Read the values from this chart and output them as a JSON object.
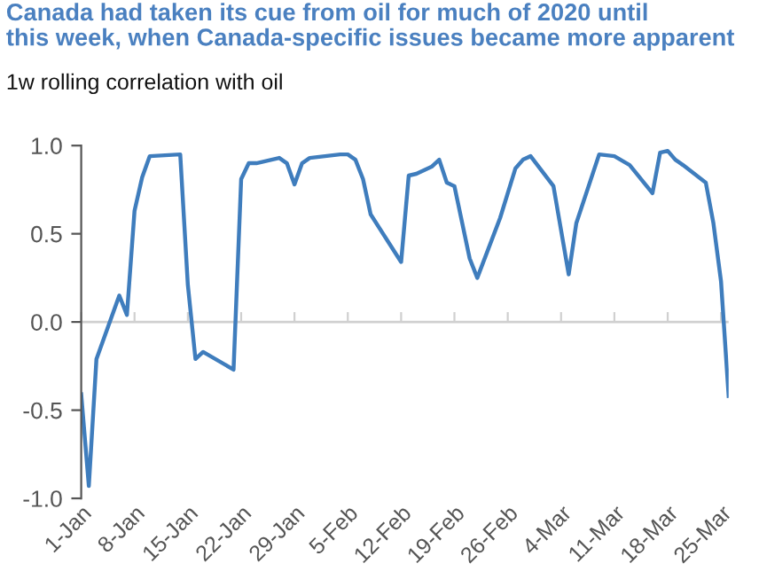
{
  "chart_data": {
    "type": "line",
    "title": "Canada had taken its cue from oil for much of 2020 until\nthis week, when Canada-specific issues became more apparent",
    "subtitle": "1w rolling correlation with oil",
    "x": [
      "2020-01-01",
      "2020-01-02",
      "2020-01-03",
      "2020-01-06",
      "2020-01-07",
      "2020-01-08",
      "2020-01-09",
      "2020-01-10",
      "2020-01-14",
      "2020-01-15",
      "2020-01-16",
      "2020-01-17",
      "2020-01-21",
      "2020-01-22",
      "2020-01-23",
      "2020-01-24",
      "2020-01-27",
      "2020-01-28",
      "2020-01-29",
      "2020-01-30",
      "2020-01-31",
      "2020-02-04",
      "2020-02-05",
      "2020-02-06",
      "2020-02-07",
      "2020-02-08",
      "2020-02-12",
      "2020-02-13",
      "2020-02-14",
      "2020-02-16",
      "2020-02-17",
      "2020-02-18",
      "2020-02-19",
      "2020-02-21",
      "2020-02-22",
      "2020-02-25",
      "2020-02-27",
      "2020-02-28",
      "2020-02-29",
      "2020-03-03",
      "2020-03-05",
      "2020-03-06",
      "2020-03-09",
      "2020-03-11",
      "2020-03-13",
      "2020-03-16",
      "2020-03-17",
      "2020-03-18",
      "2020-03-19",
      "2020-03-20",
      "2020-03-23",
      "2020-03-24",
      "2020-03-25",
      "2020-03-26"
    ],
    "series": [
      {
        "color": "#3f7dbd",
        "values": [
          -0.41,
          -0.93,
          -0.21,
          0.15,
          0.04,
          0.63,
          0.82,
          0.94,
          0.95,
          0.21,
          -0.21,
          -0.17,
          -0.27,
          0.81,
          0.9,
          0.9,
          0.93,
          0.9,
          0.78,
          0.9,
          0.93,
          0.95,
          0.95,
          0.92,
          0.81,
          0.61,
          0.34,
          0.83,
          0.84,
          0.88,
          0.92,
          0.79,
          0.77,
          0.36,
          0.25,
          0.59,
          0.87,
          0.92,
          0.94,
          0.77,
          0.27,
          0.56,
          0.95,
          0.94,
          0.89,
          0.73,
          0.96,
          0.97,
          0.92,
          0.89,
          0.79,
          0.56,
          0.23,
          -0.42
        ]
      }
    ],
    "xlim": [
      "2020-01-01",
      "2020-03-26"
    ],
    "xticks": [
      {
        "value": "2020-01-01",
        "label": "1-Jan"
      },
      {
        "value": "2020-01-08",
        "label": "8-Jan"
      },
      {
        "value": "2020-01-15",
        "label": "15-Jan"
      },
      {
        "value": "2020-01-22",
        "label": "22-Jan"
      },
      {
        "value": "2020-01-29",
        "label": "29-Jan"
      },
      {
        "value": "2020-02-05",
        "label": "5-Feb"
      },
      {
        "value": "2020-02-12",
        "label": "12-Feb"
      },
      {
        "value": "2020-02-19",
        "label": "19-Feb"
      },
      {
        "value": "2020-02-26",
        "label": "26-Feb"
      },
      {
        "value": "2020-03-04",
        "label": "4-Mar"
      },
      {
        "value": "2020-03-11",
        "label": "11-Mar"
      },
      {
        "value": "2020-03-18",
        "label": "18-Mar"
      },
      {
        "value": "2020-03-25",
        "label": "25-Mar"
      }
    ],
    "ylim": [
      -1.0,
      1.0
    ],
    "yticks": [
      {
        "value": -1.0,
        "label": "-1.0"
      },
      {
        "value": -0.5,
        "label": "-0.5"
      },
      {
        "value": 0.0,
        "label": "0.0"
      },
      {
        "value": 0.5,
        "label": "0.5"
      },
      {
        "value": 1.0,
        "label": "1.0"
      }
    ],
    "ref_lines": [
      {
        "axis": "y",
        "value": 0.0,
        "color": "#d0d0d0"
      }
    ],
    "marker": "none",
    "line_style": "solid"
  }
}
